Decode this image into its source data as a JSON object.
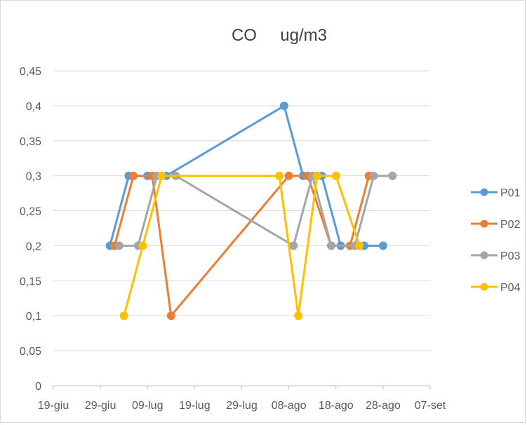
{
  "chart_data": {
    "type": "line",
    "title": "CO     ug/m3",
    "xlabel": "",
    "ylabel": "",
    "y_ticks": [
      "0",
      "0,05",
      "0,1",
      "0,15",
      "0,2",
      "0,25",
      "0,3",
      "0,35",
      "0,4",
      "0,45"
    ],
    "ylim": [
      0,
      0.45
    ],
    "x_ticks": [
      "19-giu",
      "29-giu",
      "09-lug",
      "19-lug",
      "29-lug",
      "08-ago",
      "18-ago",
      "28-ago",
      "07-set"
    ],
    "x_axis": "date",
    "xlim": [
      "2016-06-19",
      "2016-09-07"
    ],
    "grid": "horizontal",
    "legend_position": "right",
    "series": [
      {
        "name": "P01",
        "color": "#5b9bd5",
        "points": [
          {
            "x": "2016-07-01",
            "y": 0.2
          },
          {
            "x": "2016-07-05",
            "y": 0.3
          },
          {
            "x": "2016-07-09",
            "y": 0.3
          },
          {
            "x": "2016-07-13",
            "y": 0.3
          },
          {
            "x": "2016-08-07",
            "y": 0.4
          },
          {
            "x": "2016-08-11",
            "y": 0.3
          },
          {
            "x": "2016-08-15",
            "y": 0.3
          },
          {
            "x": "2016-08-19",
            "y": 0.2
          },
          {
            "x": "2016-08-24",
            "y": 0.2
          },
          {
            "x": "2016-08-28",
            "y": 0.2
          }
        ]
      },
      {
        "name": "P02",
        "color": "#ed7d31",
        "points": [
          {
            "x": "2016-07-02",
            "y": 0.2
          },
          {
            "x": "2016-07-06",
            "y": 0.3
          },
          {
            "x": "2016-07-10",
            "y": 0.3
          },
          {
            "x": "2016-07-14",
            "y": 0.1
          },
          {
            "x": "2016-08-08",
            "y": 0.3
          },
          {
            "x": "2016-08-12",
            "y": 0.3
          },
          {
            "x": "2016-08-17",
            "y": 0.2
          },
          {
            "x": "2016-08-21",
            "y": 0.2
          },
          {
            "x": "2016-08-25",
            "y": 0.3
          }
        ]
      },
      {
        "name": "P03",
        "color": "#a5a5a5",
        "points": [
          {
            "x": "2016-07-03",
            "y": 0.2
          },
          {
            "x": "2016-07-07",
            "y": 0.2
          },
          {
            "x": "2016-07-11",
            "y": 0.3
          },
          {
            "x": "2016-07-15",
            "y": 0.3
          },
          {
            "x": "2016-08-09",
            "y": 0.2
          },
          {
            "x": "2016-08-13",
            "y": 0.3
          },
          {
            "x": "2016-08-17",
            "y": 0.2
          },
          {
            "x": "2016-08-22",
            "y": 0.2
          },
          {
            "x": "2016-08-26",
            "y": 0.3
          },
          {
            "x": "2016-08-30",
            "y": 0.3
          }
        ]
      },
      {
        "name": "P04",
        "color": "#ffc000",
        "points": [
          {
            "x": "2016-07-04",
            "y": 0.1
          },
          {
            "x": "2016-07-08",
            "y": 0.2
          },
          {
            "x": "2016-07-12",
            "y": 0.3
          },
          {
            "x": "2016-08-06",
            "y": 0.3
          },
          {
            "x": "2016-08-10",
            "y": 0.1
          },
          {
            "x": "2016-08-14",
            "y": 0.3
          },
          {
            "x": "2016-08-18",
            "y": 0.3
          },
          {
            "x": "2016-08-23",
            "y": 0.2
          }
        ]
      }
    ]
  }
}
